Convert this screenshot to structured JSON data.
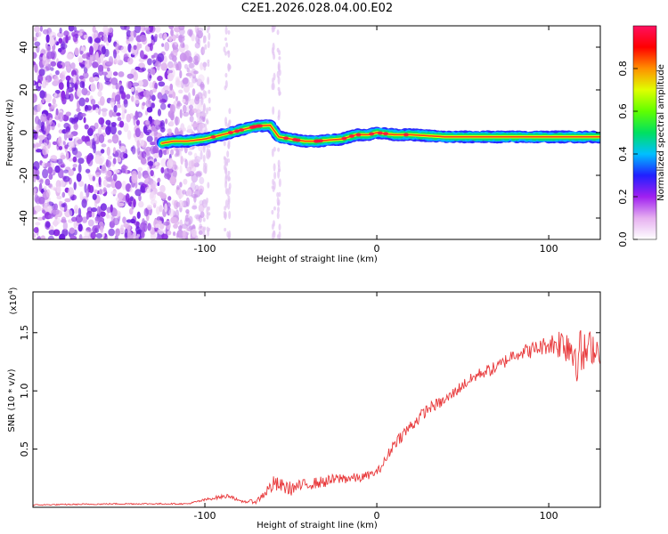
{
  "title": "C2E1.2026.028.04.00.E02",
  "chart_data": [
    {
      "type": "heatmap",
      "name": "spectrogram",
      "xlabel": "Height of straight line (km)",
      "ylabel": "Frequency (Hz)",
      "xlim": [
        -200,
        130
      ],
      "ylim": [
        -50,
        50
      ],
      "xticks": [
        -100,
        0,
        100
      ],
      "xtick_labels": [
        "-100",
        "0",
        "100"
      ],
      "yticks": [
        40,
        20,
        0,
        -20,
        -40
      ],
      "ytick_labels": [
        "40",
        "20",
        "0",
        "-20",
        "-40"
      ],
      "colorbar": {
        "label": "Normalized spectral amplitude",
        "range": [
          0,
          1
        ],
        "ticks": [
          0.0,
          0.2,
          0.4,
          0.6,
          0.8
        ],
        "tick_labels": [
          "0.0",
          "0.2",
          "0.4",
          "0.6",
          "0.8"
        ],
        "colors": [
          "#ffffff",
          "#e6b0f0",
          "#a020f0",
          "#2020ff",
          "#00c0ff",
          "#00e060",
          "#60ff00",
          "#e0ff00",
          "#ff9000",
          "#ff0000",
          "#ff1060"
        ]
      },
      "noise_region_x": [
        -200,
        -120
      ],
      "signal_trace": {
        "x": [
          -125,
          -118,
          -110,
          -100,
          -90,
          -80,
          -70,
          -62,
          -57,
          -50,
          -42,
          -35,
          -28,
          -20,
          -12,
          -5,
          0,
          10,
          20,
          40,
          60,
          80,
          100,
          130
        ],
        "y": [
          -5,
          -4,
          -4,
          -3,
          -1,
          1,
          3,
          3.5,
          -2,
          -3,
          -4,
          -4,
          -3.5,
          -3,
          -1,
          -1,
          0,
          -1,
          -1,
          -2,
          -2,
          -2,
          -2,
          -2
        ]
      }
    },
    {
      "type": "line",
      "name": "snr",
      "xlabel": "Height of straight line (km)",
      "ylabel": "SNR (10 * v/v)",
      "y_multiplier": "(x10",
      "y_multiplier_exp": "4",
      "y_multiplier_close": ")",
      "xlim": [
        -200,
        130
      ],
      "ylim": [
        0,
        1.85
      ],
      "xticks": [
        -100,
        0,
        100
      ],
      "xtick_labels": [
        "-100",
        "0",
        "100"
      ],
      "yticks": [
        0.5,
        1.0,
        1.5
      ],
      "ytick_labels": [
        "0.5",
        "1.0",
        "1.5"
      ],
      "color": "#e8383a",
      "series": [
        {
          "name": "SNR",
          "x": [
            -200,
            -150,
            -110,
            -95,
            -85,
            -80,
            -70,
            -60,
            -50,
            -40,
            -30,
            -20,
            -10,
            0,
            5,
            10,
            20,
            30,
            40,
            50,
            60,
            70,
            80,
            90,
            100,
            110,
            115,
            120,
            125,
            130
          ],
          "y": [
            0.02,
            0.03,
            0.03,
            0.08,
            0.1,
            0.05,
            0.05,
            0.2,
            0.16,
            0.2,
            0.22,
            0.25,
            0.25,
            0.3,
            0.4,
            0.55,
            0.7,
            0.85,
            0.92,
            1.05,
            1.15,
            1.2,
            1.32,
            1.35,
            1.4,
            1.42,
            1.35,
            1.3,
            1.38,
            1.35
          ],
          "noise_amplitude": [
            0.005,
            0.006,
            0.006,
            0.015,
            0.02,
            0.01,
            0.02,
            0.07,
            0.06,
            0.05,
            0.05,
            0.05,
            0.04,
            0.03,
            0.05,
            0.05,
            0.06,
            0.05,
            0.05,
            0.05,
            0.05,
            0.06,
            0.06,
            0.07,
            0.08,
            0.18,
            0.28,
            0.2,
            0.15,
            0.12
          ]
        }
      ]
    }
  ]
}
